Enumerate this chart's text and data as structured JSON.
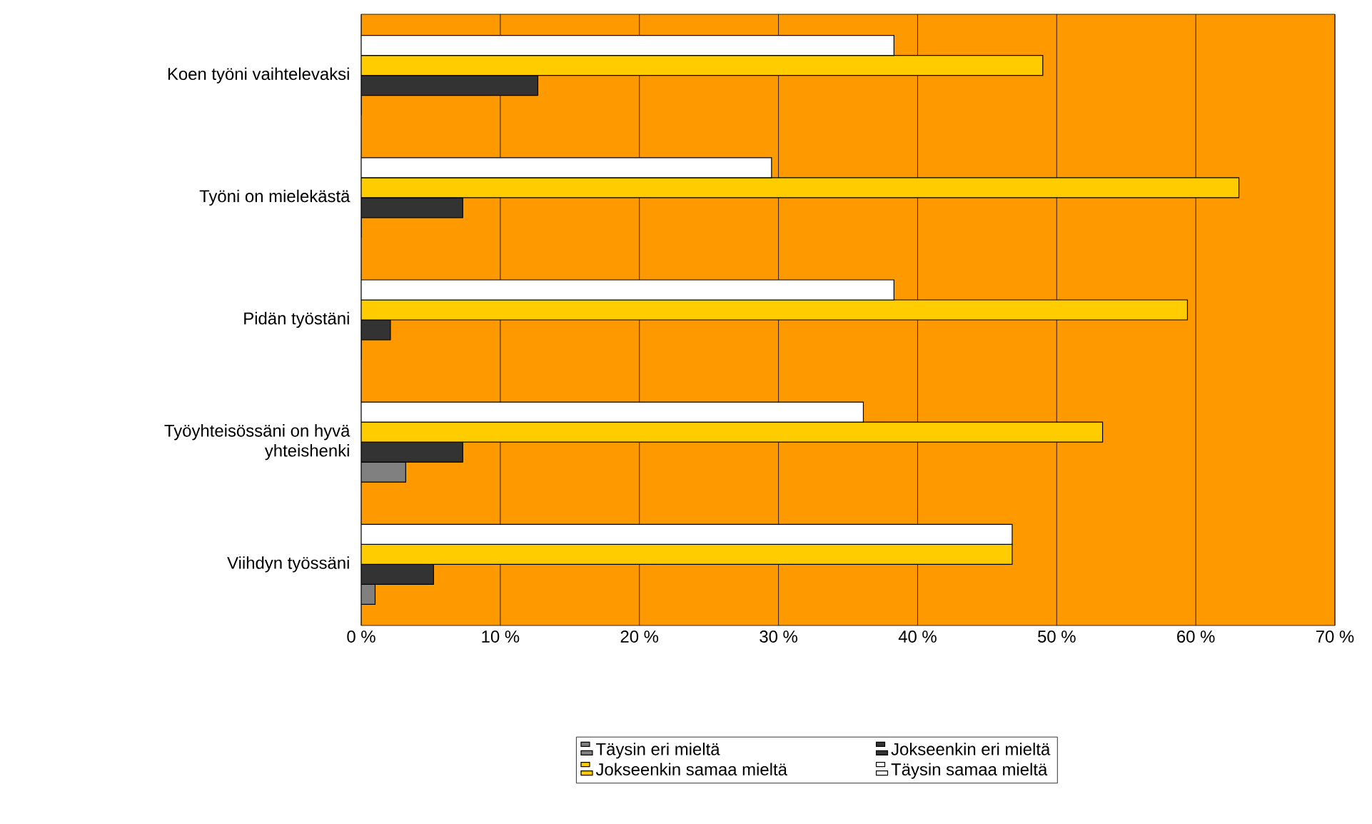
{
  "chart_data": {
    "type": "bar",
    "orientation": "horizontal",
    "grid": "x",
    "legend": "bottom",
    "categories": [
      "Koen työni vaihtelevaksi",
      "Työni on mielekästä",
      "Pidän työstäni",
      "Työyhteisössäni on hyvä yhteishenki",
      "Viihdyn työssäni"
    ],
    "series": [
      {
        "name": "Täysin eri mieltä",
        "color": "#808080",
        "values": [
          0,
          0,
          0,
          3.2,
          1.0
        ]
      },
      {
        "name": "Jokseenkin eri mieltä",
        "color": "#333333",
        "values": [
          12.7,
          7.3,
          2.1,
          7.3,
          5.2
        ]
      },
      {
        "name": "Jokseenkin samaa mieltä",
        "color": "#ffcc00",
        "values": [
          49.0,
          63.1,
          59.4,
          53.3,
          46.8
        ]
      },
      {
        "name": "Täysin samaa mieltä",
        "color": "#ffffff",
        "values": [
          38.3,
          29.5,
          38.3,
          36.1,
          46.8
        ]
      }
    ],
    "xlim": [
      0,
      70
    ],
    "xticks": [
      {
        "value": 0,
        "label": "0 %"
      },
      {
        "value": 10,
        "label": "10 %"
      },
      {
        "value": 20,
        "label": "20 %"
      },
      {
        "value": 30,
        "label": "30 %"
      },
      {
        "value": 40,
        "label": "40 %"
      },
      {
        "value": 50,
        "label": "50 %"
      },
      {
        "value": 60,
        "label": "60 %"
      },
      {
        "value": 70,
        "label": "70 %"
      }
    ]
  }
}
